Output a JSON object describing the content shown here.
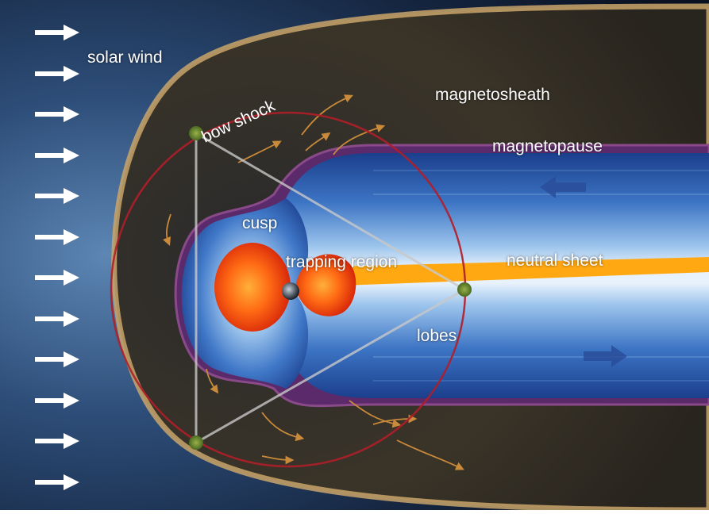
{
  "labels": {
    "solar_wind": "solar wind",
    "bow_shock": "bow shock",
    "magnetosheath": "magnetosheath",
    "magnetopause": "magnetopause",
    "cusp": "cusp",
    "trapping_region": "trapping region",
    "neutral_sheet": "neutral sheet",
    "lobes": "lobes"
  },
  "solar_wind_arrow_count": 12,
  "colors": {
    "space": "#0b1426",
    "solar_wind_glow": "#4c78a8",
    "magnetosheath": "#3a3428",
    "bow_shock_edge": "#c9a46a",
    "magnetopause": "#5a2a6a",
    "magnetosphere": "#2a5aa8",
    "magnetosphere_light": "#bcd8f4",
    "radiation_belt": "#ff6a14",
    "neutral_sheet": "#ffa812",
    "orbit_circle": "#b01e28",
    "triangle": "#c8c8c8",
    "spacecraft": "#6a8a2a",
    "flow_arrows": "#c98a3a",
    "text": "#ffffff"
  }
}
